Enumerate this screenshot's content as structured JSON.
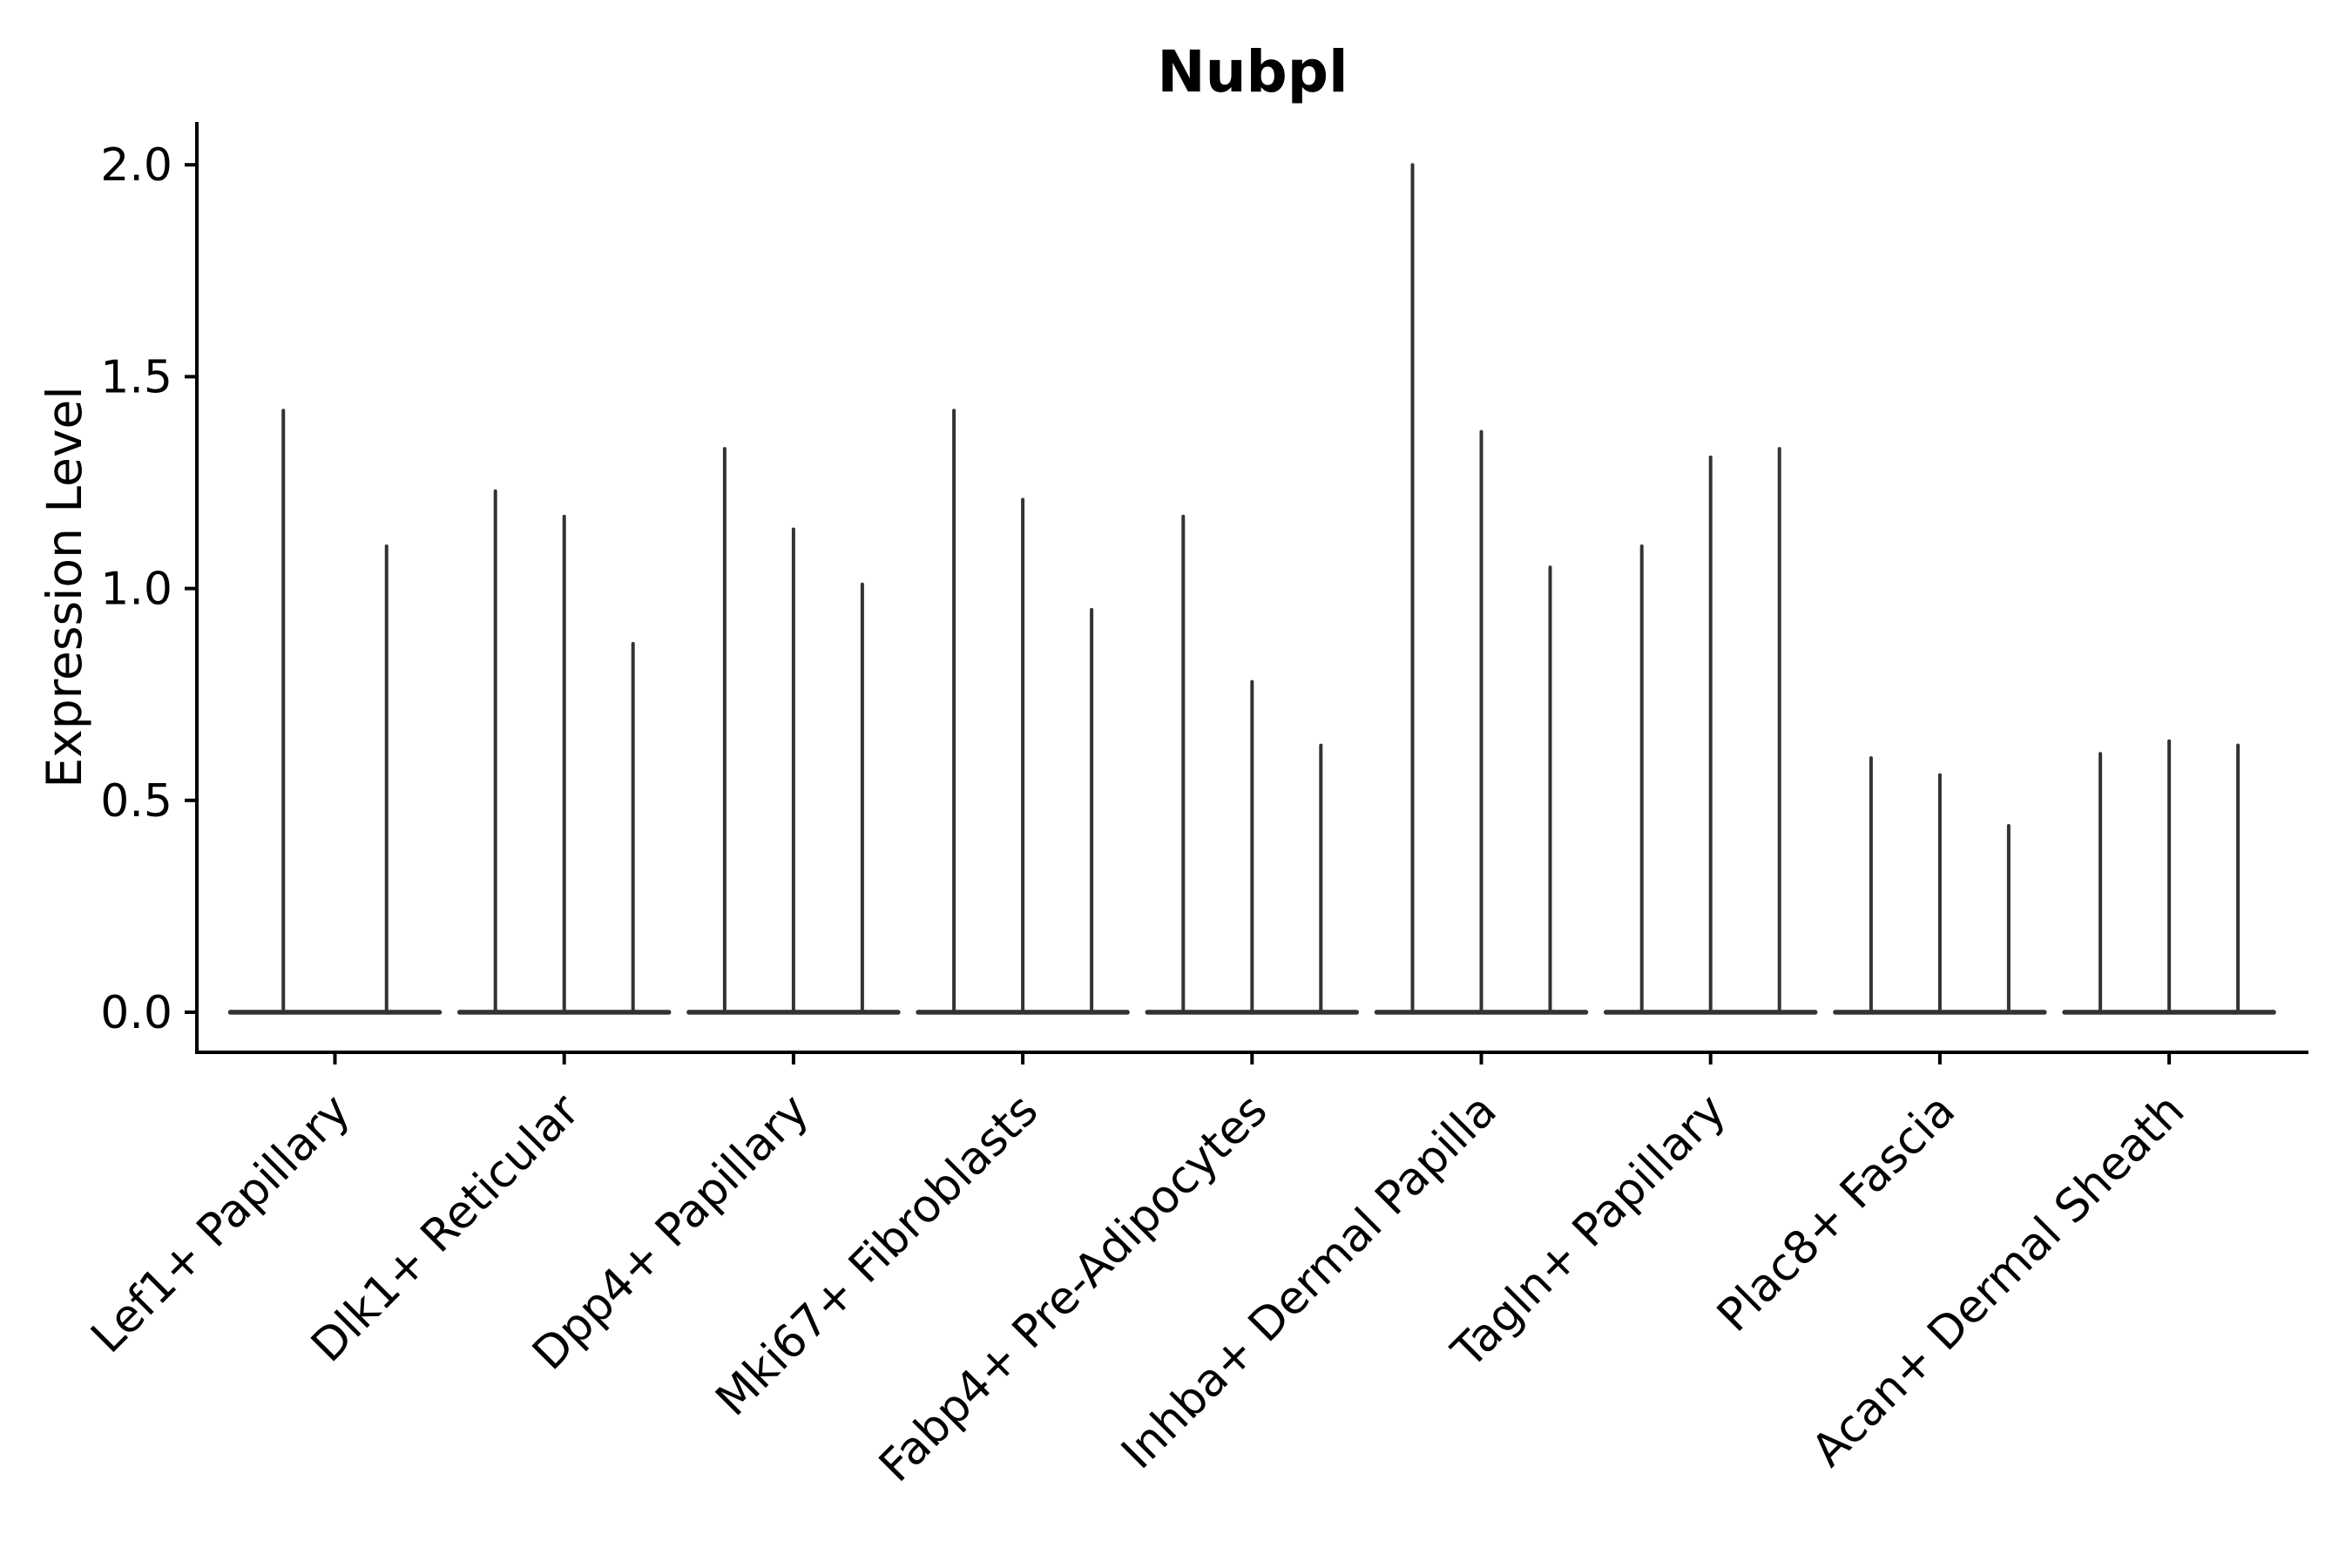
{
  "chart_data": {
    "type": "violin",
    "title": "Nubpl",
    "xlabel": "",
    "ylabel": "Expression Level",
    "ylim": [
      0.0,
      2.0
    ],
    "yticks": [
      "0.0",
      "0.5",
      "1.0",
      "1.5",
      "2.0"
    ],
    "ytick_values": [
      0.0,
      0.5,
      1.0,
      1.5,
      2.0
    ],
    "grid": false,
    "legend": "none",
    "violin_shape": "collapsed-to-thin-spikes-at-zero-baseline",
    "categories": [
      "Lef1+ Papillary",
      "Dlk1+ Reticular",
      "Dpp4+ Papillary",
      "Mki67+ Fibroblasts",
      "Fabp4+ Pre-Adipocytes",
      "Inhba+ Dermal Papilla",
      "Tagln+ Papillary",
      "Plac8+ Fascia",
      "Acan+ Dermal Sheath"
    ],
    "groups": [
      {
        "category": "Lef1+ Papillary",
        "violin_peaks": [
          1.42,
          1.1
        ]
      },
      {
        "category": "Dlk1+ Reticular",
        "violin_peaks": [
          1.23,
          1.17,
          0.87
        ]
      },
      {
        "category": "Dpp4+ Papillary",
        "violin_peaks": [
          1.33,
          1.14,
          1.01
        ]
      },
      {
        "category": "Mki67+ Fibroblasts",
        "violin_peaks": [
          1.42,
          1.21,
          0.95
        ]
      },
      {
        "category": "Fabp4+ Pre-Adipocytes",
        "violin_peaks": [
          1.17,
          0.78,
          0.63
        ]
      },
      {
        "category": "Inhba+ Dermal Papilla",
        "violin_peaks": [
          2.0,
          1.37,
          1.05
        ]
      },
      {
        "category": "Tagln+ Papillary",
        "violin_peaks": [
          1.1,
          1.31,
          1.33
        ]
      },
      {
        "category": "Plac8+ Fascia",
        "violin_peaks": [
          0.6,
          0.56,
          0.44
        ]
      },
      {
        "category": "Acan+ Dermal Sheath",
        "violin_peaks": [
          0.61,
          0.64,
          0.63
        ]
      }
    ],
    "colors": {
      "violin_line": "#333333",
      "axis": "#000000",
      "text": "#000000",
      "background": "#ffffff"
    }
  }
}
